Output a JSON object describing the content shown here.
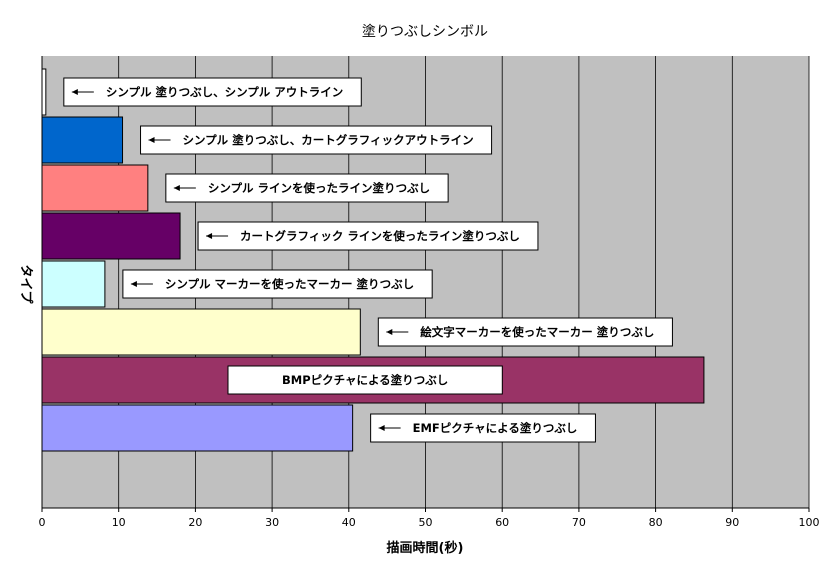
{
  "chart_data": {
    "type": "bar",
    "orientation": "horizontal",
    "title": "塗りつぶしシンボル",
    "xlabel": "描画時間(秒)",
    "ylabel": "タイプ",
    "xlim": [
      0,
      100
    ],
    "x_ticks": [
      "0",
      "10",
      "20",
      "30",
      "40",
      "50",
      "60",
      "70",
      "80",
      "90",
      "100"
    ],
    "grid": "vertical",
    "plot_background": "#c0c0c0",
    "bars": [
      {
        "value": 0.5,
        "color": "#ffffff",
        "annotation": "シンプル 塗りつぶし、シンプル アウトライン"
      },
      {
        "value": 10.5,
        "color": "#0066cc",
        "annotation": "シンプル 塗りつぶし、カートグラフィックアウトライン"
      },
      {
        "value": 13.8,
        "color": "#ff8080",
        "annotation": "シンプル ラインを使ったライン塗りつぶし"
      },
      {
        "value": 18.0,
        "color": "#660066",
        "annotation": "カートグラフィック ラインを使ったライン塗りつぶし"
      },
      {
        "value": 8.2,
        "color": "#ccffff",
        "annotation": "シンプル マーカーを使ったマーカー 塗りつぶし"
      },
      {
        "value": 41.5,
        "color": "#ffffcc",
        "annotation": "絵文字マーカーを使ったマーカー 塗りつぶし"
      },
      {
        "value": 86.3,
        "color": "#993366",
        "annotation": "BMPピクチャによる塗りつぶし"
      },
      {
        "value": 40.5,
        "color": "#9999ff",
        "annotation": "EMFピクチャによる塗りつぶし"
      }
    ]
  }
}
